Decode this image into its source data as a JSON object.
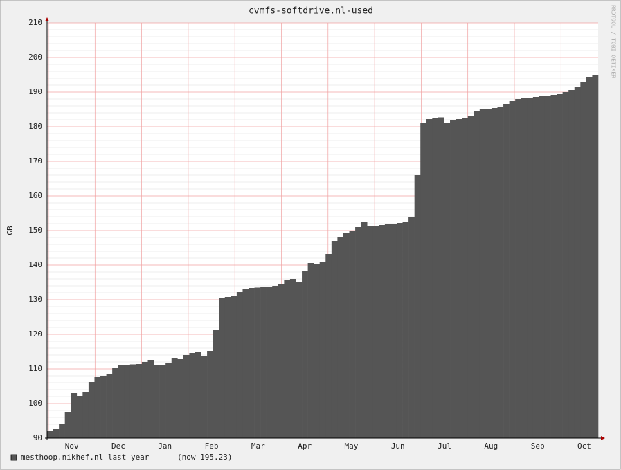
{
  "chart_data": {
    "type": "bar",
    "title": "cvmfs-softdrive.nl-used",
    "y_label": "GB",
    "watermark": "RRDTOOL / TOBI OETIKER",
    "month_labels": [
      "Nov",
      "Dec",
      "Jan",
      "Feb",
      "Mar",
      "Apr",
      "May",
      "Jun",
      "Jul",
      "Aug",
      "Sep",
      "Oct"
    ],
    "ylim": [
      90,
      210
    ],
    "yticks": [
      90,
      100,
      110,
      120,
      130,
      140,
      150,
      160,
      170,
      180,
      190,
      200,
      210
    ],
    "grid": true,
    "legend_note": "(now 195.23)",
    "series": [
      {
        "name": "mesthoop.nikhef.nl last year",
        "color": "#555555",
        "values": [
          92.2,
          92.6,
          94.2,
          97.6,
          103,
          102.2,
          103.4,
          106.2,
          107.8,
          108,
          108.6,
          110.4,
          111,
          111.2,
          111.3,
          111.4,
          112,
          112.6,
          111,
          111.2,
          111.6,
          113.2,
          113,
          114,
          114.6,
          114.8,
          113.8,
          115.2,
          121.2,
          130.6,
          130.8,
          131,
          132.2,
          133,
          133.4,
          133.5,
          133.6,
          133.8,
          134,
          134.6,
          135.8,
          136,
          135,
          138.2,
          140.6,
          140.4,
          140.8,
          143.2,
          147,
          148.2,
          149.2,
          149.8,
          151,
          152.4,
          151.4,
          151.4,
          151.6,
          151.8,
          152,
          152.2,
          152.4,
          153.8,
          166,
          181.2,
          182.2,
          182.6,
          182.7,
          181,
          181.8,
          182.2,
          182.4,
          183.2,
          184.6,
          185,
          185.2,
          185.4,
          185.8,
          186.6,
          187.4,
          188,
          188.2,
          188.4,
          188.6,
          188.8,
          189,
          189.2,
          189.4,
          190,
          190.6,
          191.4,
          193,
          194.4,
          195
        ]
      }
    ]
  }
}
